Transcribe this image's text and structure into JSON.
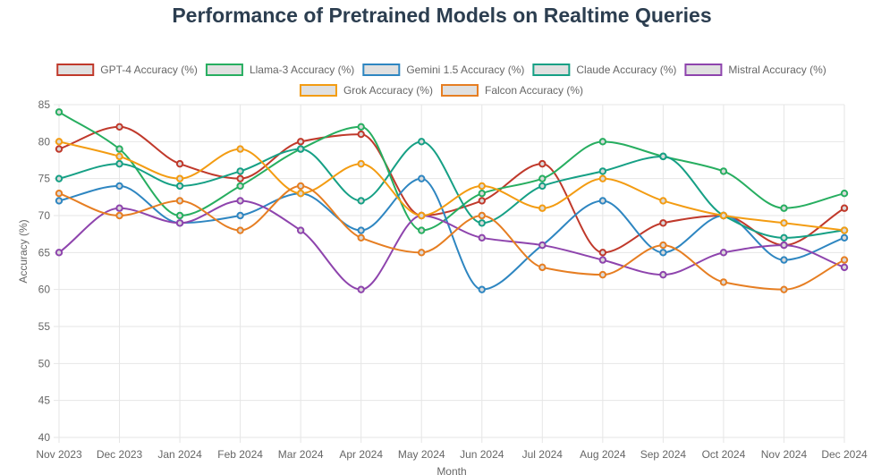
{
  "chart_data": {
    "type": "line",
    "title": "Performance of Pretrained Models on Realtime Queries",
    "xlabel": "Month",
    "ylabel": "Accuracy (%)",
    "ylim": [
      40,
      85
    ],
    "yticks": [
      40,
      45,
      50,
      55,
      60,
      65,
      70,
      75,
      80,
      85
    ],
    "grid": true,
    "legend_position": "top",
    "categories": [
      "Nov 2023",
      "Dec 2023",
      "Jan 2024",
      "Feb 2024",
      "Mar 2024",
      "Apr 2024",
      "May 2024",
      "Jun 2024",
      "Jul 2024",
      "Aug 2024",
      "Sep 2024",
      "Oct 2024",
      "Nov 2024",
      "Dec 2024"
    ],
    "series": [
      {
        "name": "GPT-4 Accuracy (%)",
        "color": "#c0392b",
        "values": [
          79,
          82,
          77,
          75,
          80,
          81,
          70,
          72,
          77,
          65,
          69,
          70,
          66,
          71
        ]
      },
      {
        "name": "Llama-3 Accuracy (%)",
        "color": "#27ae60",
        "values": [
          84,
          79,
          70,
          74,
          79,
          82,
          68,
          73,
          75,
          80,
          78,
          76,
          71,
          73
        ]
      },
      {
        "name": "Gemini 1.5 Accuracy (%)",
        "color": "#2e86c1",
        "values": [
          72,
          74,
          69,
          70,
          73,
          68,
          75,
          60,
          66,
          72,
          65,
          70,
          64,
          67
        ]
      },
      {
        "name": "Claude Accuracy (%)",
        "color": "#16a085",
        "values": [
          75,
          77,
          74,
          76,
          79,
          72,
          80,
          69,
          74,
          76,
          78,
          70,
          67,
          68
        ]
      },
      {
        "name": "Mistral Accuracy (%)",
        "color": "#8e44ad",
        "values": [
          65,
          71,
          69,
          72,
          68,
          60,
          70,
          67,
          66,
          64,
          62,
          65,
          66,
          63
        ]
      },
      {
        "name": "Grok Accuracy (%)",
        "color": "#f39c12",
        "values": [
          80,
          78,
          75,
          79,
          73,
          77,
          70,
          74,
          71,
          75,
          72,
          70,
          69,
          68
        ]
      },
      {
        "name": "Falcon Accuracy (%)",
        "color": "#e67e22",
        "values": [
          73,
          70,
          72,
          68,
          74,
          67,
          65,
          70,
          63,
          62,
          66,
          61,
          60,
          64
        ]
      }
    ]
  }
}
